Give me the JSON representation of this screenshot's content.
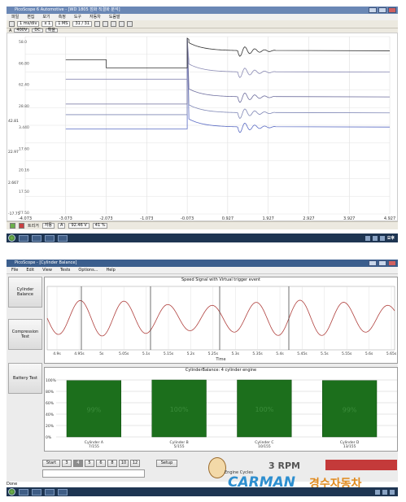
{
  "top_window": {
    "title": "PicoScope 6 Automotive - [WD 1805 점화 직결화 분석]",
    "menu": [
      "파일",
      "편집",
      "보기",
      "측정",
      "도구",
      "자동차",
      "도움말"
    ],
    "toolbar1": {
      "timebase": "1 ms/div",
      "zoom": "x 1",
      "samples": "1 MS",
      "capture": "31 / 31"
    },
    "toolbar2": {
      "channel": "A",
      "range": "400V",
      "coupling": "DC",
      "filter": "확율"
    },
    "y_labels_left": [
      "42.81",
      "22.97",
      "2.667",
      "-17.75"
    ],
    "y_labels_channel": [
      "58.0",
      "66.80",
      "62.40",
      "28.80",
      "3.440",
      "17.60",
      "20.16",
      "17.50",
      "77.50"
    ],
    "x_ticks": [
      "-4.073",
      "-3.073",
      "-2.073",
      "-1.073",
      "-0.073",
      "0.927",
      "1.927",
      "2.927",
      "3.927",
      "4.927"
    ],
    "status": {
      "trigger": "트리거",
      "mode": "자동",
      "channel": "A",
      "level": "92.46 V",
      "pre": "41 %"
    },
    "chart_data": {
      "type": "line",
      "xlabel": "",
      "ylabel": "V",
      "x_range": [
        -4.073,
        4.927
      ],
      "series": [
        {
          "values_desc": "flat then spike at -0.073 then ringing",
          "levels": [
            0.48,
            0.49,
            0.49
          ]
        },
        {
          "values_desc": "",
          "levels": [
            0.56,
            0.57,
            0.57
          ]
        },
        {
          "values_desc": "",
          "levels": [
            0.62,
            0.66,
            0.66
          ]
        },
        {
          "values_desc": "",
          "levels": [
            0.76,
            0.8,
            0.8
          ]
        },
        {
          "values_desc": "",
          "levels": [
            0.87,
            0.92,
            0.92
          ]
        }
      ]
    }
  },
  "taskbar_top": {
    "clock": "오후"
  },
  "bottom_window": {
    "title": "PicoScope - [Cylinder Balance]",
    "menu": [
      "File",
      "Edit",
      "View",
      "Tests",
      "Options...",
      "Help"
    ],
    "side_buttons": [
      "Cylinder Balance",
      "Compression Test",
      "Battery Test"
    ],
    "speed_panel": {
      "title": "Speed Signal with Virtual trigger event",
      "xlabel": "Time",
      "x_ticks": [
        "4.9s",
        "4.95s",
        "5s",
        "5.05s",
        "5.1s",
        "5.15s",
        "5.2s",
        "5.25s",
        "5.3s",
        "5.35s",
        "5.4s",
        "5.45s",
        "5.5s",
        "5.55s",
        "5.6s",
        "5.65s"
      ]
    },
    "balance_panel": {
      "title": "CylinderBalance: 4 cylinder engine",
      "y_ticks": [
        "100%",
        "80%",
        "60%",
        "40%",
        "20%",
        "0%"
      ],
      "chart_data": {
        "type": "bar",
        "categories": [
          "Cylinder A",
          "Cylinder B",
          "Cylinder C",
          "Cylinder D"
        ],
        "values": [
          99,
          100,
          100,
          99
        ],
        "counts": [
          "7/155",
          "5/155",
          "10/155",
          "13/155"
        ],
        "bar_labels": [
          "99%",
          "100%",
          "100%",
          "99%"
        ],
        "ylim": [
          0,
          100
        ]
      }
    },
    "bottom_controls": {
      "start": "Start",
      "cycles": [
        "3",
        "4",
        "5",
        "6",
        "8",
        "10",
        "12"
      ],
      "selected_cycle": "4",
      "setup": "Setup",
      "engine_cycles": "Engine Cycles",
      "rpm": "RPM",
      "rpm_value": "3"
    },
    "status": "Done"
  },
  "watermark": {
    "brand": "CARMAN",
    "subtitle": "경수자동차"
  }
}
